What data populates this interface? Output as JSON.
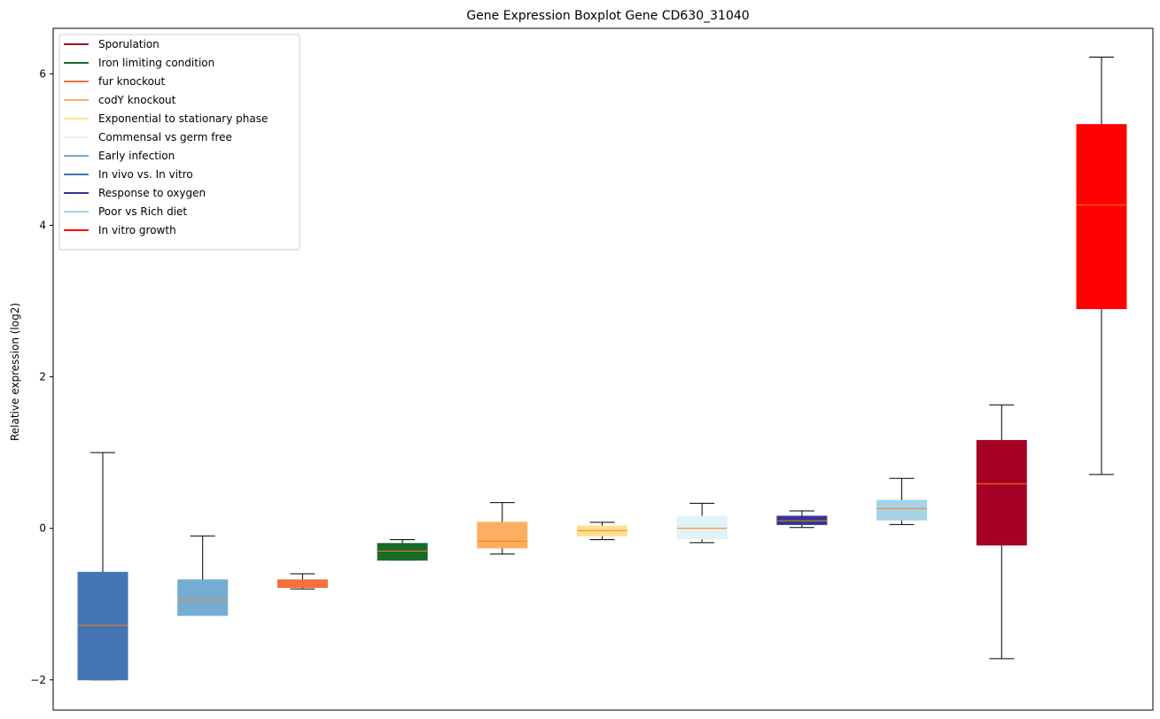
{
  "chart_data": {
    "type": "box",
    "title": "Gene Expression Boxplot Gene CD630_31040",
    "xlabel": "",
    "ylabel": "Relative expression (log2)",
    "ylim": [
      -2.4,
      6.6
    ],
    "yticks": [
      -2,
      0,
      2,
      4,
      6
    ],
    "ytick_labels": [
      "−2",
      "0",
      "2",
      "4",
      "6"
    ],
    "grid": false,
    "legend_position": "top-left",
    "legend": [
      {
        "label": "Sporulation",
        "color": "#a50026"
      },
      {
        "label": "Iron limiting condition",
        "color": "#1a6b2a"
      },
      {
        "label": "fur knockout",
        "color": "#f46d43"
      },
      {
        "label": "codY knockout",
        "color": "#fdae61"
      },
      {
        "label": "Exponential to stationary phase",
        "color": "#fee090"
      },
      {
        "label": "Commensal vs germ free",
        "color": "#e0f3f8"
      },
      {
        "label": "Early infection",
        "color": "#74add1"
      },
      {
        "label": "In vivo vs. In vitro",
        "color": "#4575b4"
      },
      {
        "label": "Response to oxygen",
        "color": "#313695"
      },
      {
        "label": "Poor vs Rich diet",
        "color": "#a6d4e6"
      },
      {
        "label": "In vitro growth",
        "color": "#ff0000"
      }
    ],
    "boxes": [
      {
        "color": "#4575b4",
        "whisker_low": -2.0,
        "q1": -2.0,
        "median": -1.28,
        "q3": -0.58,
        "whisker_high": 1.0
      },
      {
        "color": "#74add1",
        "whisker_low": -1.15,
        "q1": -1.15,
        "median": -0.95,
        "q3": -0.68,
        "whisker_high": -0.1
      },
      {
        "color": "#f46d43",
        "whisker_low": -0.8,
        "q1": -0.78,
        "median": -0.72,
        "q3": -0.68,
        "whisker_high": -0.6
      },
      {
        "color": "#1a6b2a",
        "whisker_low": -0.42,
        "q1": -0.42,
        "median": -0.3,
        "q3": -0.2,
        "whisker_high": -0.15
      },
      {
        "color": "#fdae61",
        "whisker_low": -0.34,
        "q1": -0.26,
        "median": -0.17,
        "q3": 0.08,
        "whisker_high": 0.34
      },
      {
        "color": "#fee090",
        "whisker_low": -0.15,
        "q1": -0.1,
        "median": -0.03,
        "q3": 0.03,
        "whisker_high": 0.08
      },
      {
        "color": "#e0f3f8",
        "whisker_low": -0.19,
        "q1": -0.14,
        "median": 0.0,
        "q3": 0.16,
        "whisker_high": 0.33
      },
      {
        "color": "#313695",
        "whisker_low": 0.01,
        "q1": 0.05,
        "median": 0.1,
        "q3": 0.16,
        "whisker_high": 0.23
      },
      {
        "color": "#a6d4e6",
        "whisker_low": 0.05,
        "q1": 0.11,
        "median": 0.26,
        "q3": 0.37,
        "whisker_high": 0.66
      },
      {
        "color": "#a50026",
        "whisker_low": -1.72,
        "q1": -0.22,
        "median": 0.59,
        "q3": 1.16,
        "whisker_high": 1.63
      },
      {
        "color": "#ff0000",
        "whisker_low": 0.71,
        "q1": 2.9,
        "median": 4.27,
        "q3": 5.33,
        "whisker_high": 6.22
      }
    ],
    "median_color": "#ff7f0e"
  }
}
